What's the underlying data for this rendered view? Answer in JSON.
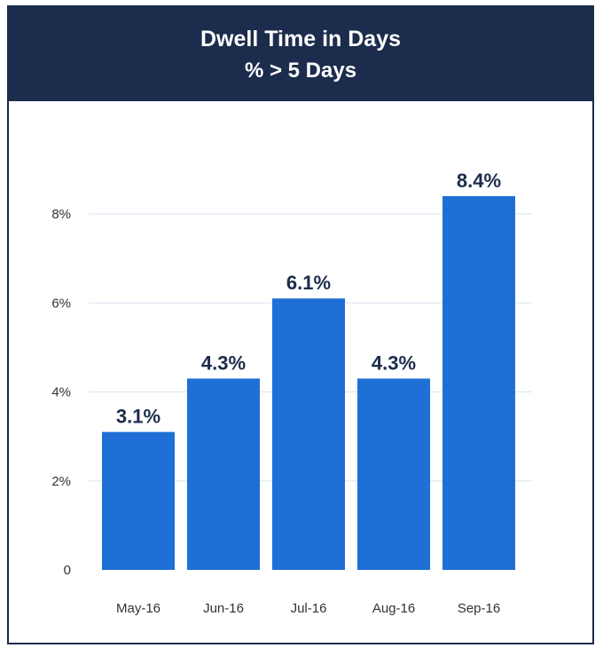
{
  "header": {
    "title": "Dwell Time in Days",
    "subtitle": "% > 5 Days"
  },
  "colors": {
    "header_bg": "#1c2c4c",
    "bar": "#1e6fd6",
    "data_label": "#1c2c4c",
    "grid": "#d8e6f4"
  },
  "chart_data": {
    "type": "bar",
    "title": "Dwell Time in Days",
    "subtitle": "% > 5 Days",
    "categories": [
      "May-16",
      "Jun-16",
      "Jul-16",
      "Aug-16",
      "Sep-16"
    ],
    "values": [
      3.1,
      4.3,
      6.1,
      4.3,
      8.4
    ],
    "data_labels": [
      "3.1%",
      "4.3%",
      "6.1%",
      "4.3%",
      "8.4%"
    ],
    "y_ticks": [
      0,
      2,
      4,
      6,
      8
    ],
    "y_tick_labels": [
      "0",
      "2%",
      "4%",
      "6%",
      "8%"
    ],
    "ylim": [
      0,
      8
    ],
    "xlabel": "",
    "ylabel": "",
    "grid": true,
    "legend": "none"
  }
}
